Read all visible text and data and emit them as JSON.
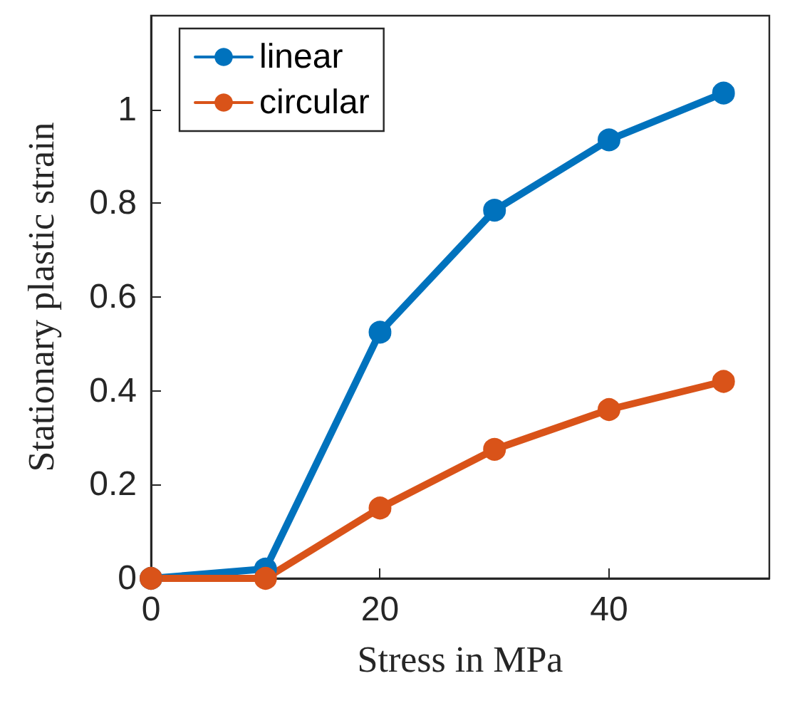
{
  "chart_data": {
    "type": "line",
    "xlabel": "Stress in MPa",
    "ylabel": "Stationary plastic strain",
    "x": [
      0,
      10,
      20,
      30,
      40,
      50
    ],
    "series": [
      {
        "name": "linear",
        "color": "#0072bd",
        "values": [
          0,
          0.02,
          0.525,
          0.785,
          0.935,
          1.035
        ]
      },
      {
        "name": "circular",
        "color": "#d95319",
        "values": [
          0,
          0,
          0.15,
          0.275,
          0.36,
          0.42
        ]
      }
    ],
    "xlim": [
      0,
      54
    ],
    "xticks": [
      0,
      20,
      40
    ],
    "ylim": [
      0,
      1.2
    ],
    "yticks": [
      0,
      0.2,
      0.4,
      0.6,
      0.8,
      1
    ],
    "grid": false,
    "legend": "top left",
    "marker": "circle",
    "line_style": "solid"
  }
}
